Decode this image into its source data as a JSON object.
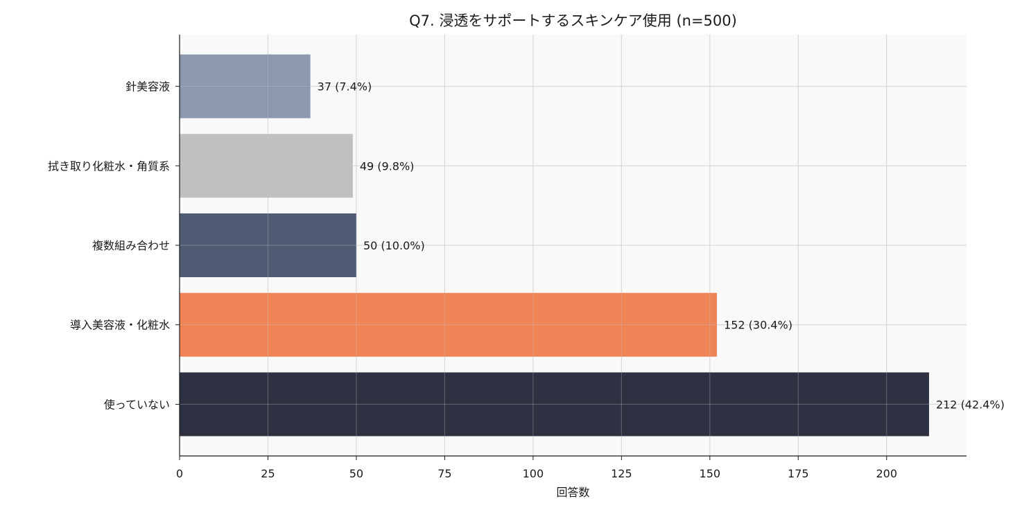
{
  "chart_data": {
    "type": "bar",
    "orientation": "horizontal",
    "title": "Q7. 浸透をサポートするスキンケア使用 (n=500)",
    "xlabel": "回答数",
    "ylabel": "",
    "xlim": [
      0,
      222.6
    ],
    "xticks": [
      "0",
      "25",
      "50",
      "75",
      "100",
      "125",
      "150",
      "175",
      "200"
    ],
    "grid": true,
    "categories": [
      "針美容液",
      "拭き取り化粧水・角質系",
      "複数組み合わせ",
      "導入美容液・化粧水",
      "使っていない"
    ],
    "values": [
      37,
      49,
      50,
      152,
      212
    ],
    "data_labels": [
      "37 (7.4%)",
      "49 (9.8%)",
      "50 (10.0%)",
      "152 (30.4%)",
      "212 (42.4%)"
    ],
    "colors": [
      "#8c98ae",
      "#bfc1c0",
      "#4f5c74",
      "#ef8457",
      "#2e3142"
    ]
  }
}
